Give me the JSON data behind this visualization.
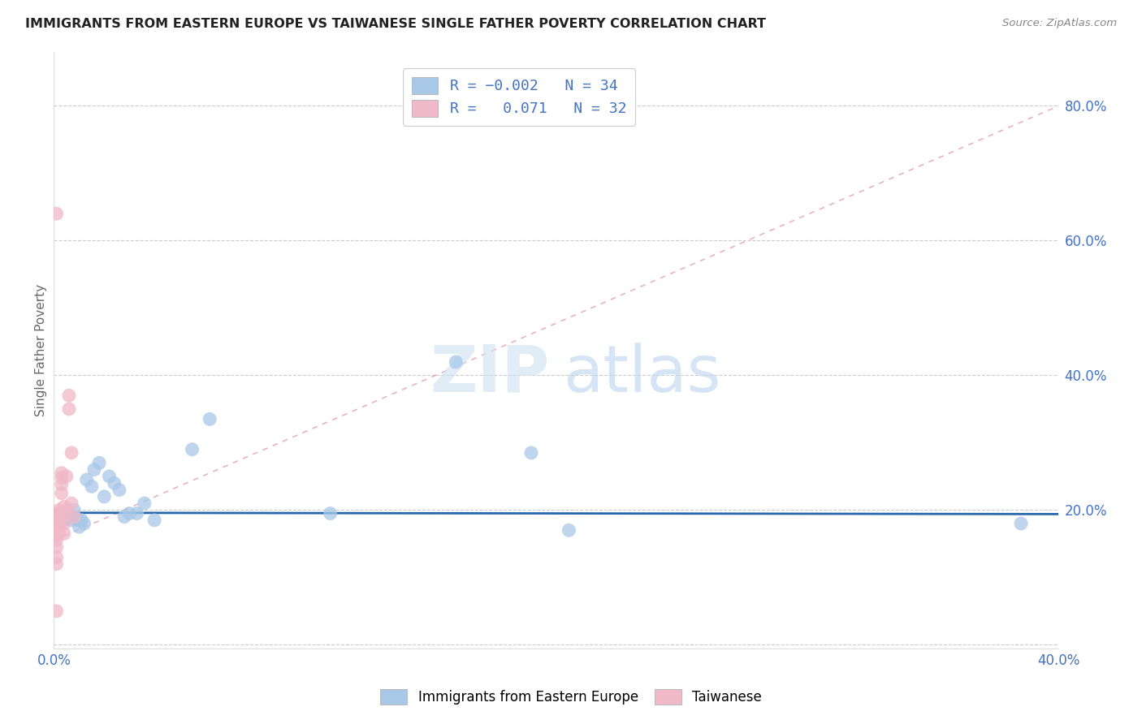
{
  "title": "IMMIGRANTS FROM EASTERN EUROPE VS TAIWANESE SINGLE FATHER POVERTY CORRELATION CHART",
  "source": "Source: ZipAtlas.com",
  "ylabel": "Single Father Poverty",
  "xlim": [
    0.0,
    0.4
  ],
  "ylim": [
    -0.005,
    0.88
  ],
  "yticks": [
    0.0,
    0.2,
    0.4,
    0.6,
    0.8
  ],
  "ytick_labels_right": [
    "",
    "20.0%",
    "40.0%",
    "60.0%",
    "80.0%"
  ],
  "xticks": [
    0.0,
    0.1,
    0.2,
    0.3,
    0.4
  ],
  "xtick_labels": [
    "0.0%",
    "",
    "",
    "",
    "40.0%"
  ],
  "blue_color": "#a8c8e8",
  "pink_color": "#f0b8c8",
  "trend_blue_color": "#1a5fa8",
  "trend_pink_color": "#d88098",
  "blue_scatter_x": [
    0.001,
    0.002,
    0.002,
    0.003,
    0.004,
    0.005,
    0.006,
    0.007,
    0.008,
    0.009,
    0.01,
    0.01,
    0.011,
    0.012,
    0.013,
    0.015,
    0.016,
    0.018,
    0.02,
    0.022,
    0.024,
    0.026,
    0.028,
    0.03,
    0.033,
    0.036,
    0.04,
    0.055,
    0.062,
    0.11,
    0.16,
    0.19,
    0.205,
    0.385
  ],
  "blue_scatter_y": [
    0.19,
    0.185,
    0.195,
    0.19,
    0.185,
    0.19,
    0.195,
    0.185,
    0.2,
    0.185,
    0.185,
    0.175,
    0.185,
    0.18,
    0.245,
    0.235,
    0.26,
    0.27,
    0.22,
    0.25,
    0.24,
    0.23,
    0.19,
    0.195,
    0.195,
    0.21,
    0.185,
    0.29,
    0.335,
    0.195,
    0.42,
    0.285,
    0.17,
    0.18
  ],
  "pink_scatter_x": [
    0.001,
    0.001,
    0.001,
    0.001,
    0.001,
    0.001,
    0.001,
    0.001,
    0.001,
    0.001,
    0.001,
    0.002,
    0.002,
    0.002,
    0.002,
    0.002,
    0.003,
    0.003,
    0.003,
    0.003,
    0.004,
    0.004,
    0.004,
    0.004,
    0.005,
    0.005,
    0.006,
    0.006,
    0.007,
    0.007,
    0.008,
    0.001
  ],
  "pink_scatter_y": [
    0.195,
    0.19,
    0.185,
    0.18,
    0.175,
    0.165,
    0.155,
    0.145,
    0.13,
    0.12,
    0.05,
    0.2,
    0.195,
    0.185,
    0.175,
    0.165,
    0.255,
    0.248,
    0.238,
    0.225,
    0.205,
    0.195,
    0.18,
    0.165,
    0.25,
    0.2,
    0.37,
    0.35,
    0.285,
    0.21,
    0.19,
    0.64
  ],
  "blue_trend_x": [
    0.0,
    0.4
  ],
  "blue_trend_y": [
    0.196,
    0.194
  ],
  "pink_trend_x": [
    0.0,
    0.4
  ],
  "pink_trend_y": [
    0.155,
    0.8
  ],
  "watermark_zip": "ZIP",
  "watermark_atlas": "atlas"
}
